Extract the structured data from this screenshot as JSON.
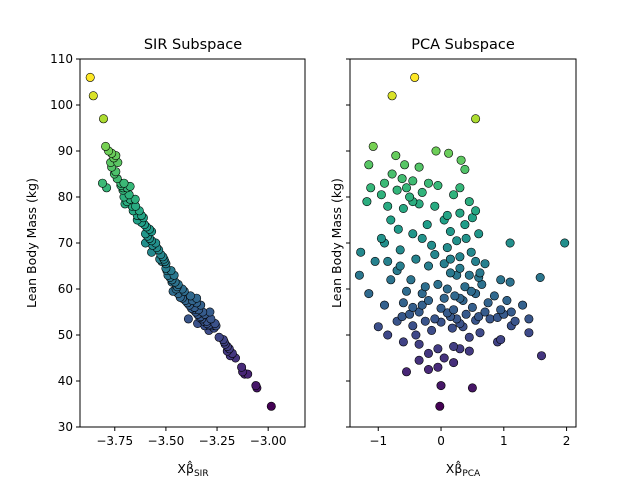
{
  "chart_data": [
    {
      "type": "scatter",
      "title": "SIR Subspace",
      "xlabel_main": "Xβ̂",
      "xlabel_sub": "SIR",
      "ylabel": "Lean Body Mass (kg)",
      "xlim": [
        -3.92,
        -2.82
      ],
      "ylim": [
        30,
        110
      ],
      "xticks": [
        -3.75,
        -3.5,
        -3.25,
        -3.0
      ],
      "xtick_labels": [
        "−3.75",
        "−3.50",
        "−3.25",
        "−3.00"
      ],
      "yticks": [
        30,
        40,
        50,
        60,
        70,
        80,
        90,
        100,
        110
      ],
      "ytick_labels": [
        "30",
        "40",
        "50",
        "60",
        "70",
        "80",
        "90",
        "100",
        "110"
      ],
      "colormap": "viridis",
      "grid": false,
      "points": [
        [
          -3.87,
          106
        ],
        [
          -3.855,
          102
        ],
        [
          -3.805,
          97
        ],
        [
          -3.795,
          91
        ],
        [
          -3.78,
          90
        ],
        [
          -3.765,
          89.5
        ],
        [
          -3.755,
          88.5
        ],
        [
          -3.745,
          89
        ],
        [
          -3.77,
          87.5
        ],
        [
          -3.765,
          86.5
        ],
        [
          -3.752,
          85
        ],
        [
          -3.745,
          85.5
        ],
        [
          -3.738,
          84
        ],
        [
          -3.72,
          83
        ],
        [
          -3.71,
          82
        ],
        [
          -3.705,
          83
        ],
        [
          -3.69,
          82
        ],
        [
          -3.675,
          82.3
        ],
        [
          -3.705,
          80
        ],
        [
          -3.69,
          79
        ],
        [
          -3.675,
          79.5
        ],
        [
          -3.665,
          78
        ],
        [
          -3.66,
          77
        ],
        [
          -3.648,
          78
        ],
        [
          -3.64,
          76
        ],
        [
          -3.64,
          75
        ],
        [
          -3.62,
          76
        ],
        [
          -3.61,
          75.5
        ],
        [
          -3.605,
          74
        ],
        [
          -3.595,
          73.5
        ],
        [
          -3.6,
          72
        ],
        [
          -3.59,
          71.5
        ],
        [
          -3.58,
          71
        ],
        [
          -3.57,
          70.5
        ],
        [
          -3.565,
          69.5
        ],
        [
          -3.57,
          68
        ],
        [
          -3.545,
          69
        ],
        [
          -3.535,
          68.5
        ],
        [
          -3.525,
          67.5
        ],
        [
          -3.53,
          66.5
        ],
        [
          -3.52,
          66
        ],
        [
          -3.51,
          66.5
        ],
        [
          -3.5,
          65.5
        ],
        [
          -3.495,
          64
        ],
        [
          -3.49,
          63
        ],
        [
          -3.48,
          62.5
        ],
        [
          -3.47,
          61.5
        ],
        [
          -3.455,
          61.5
        ],
        [
          -3.445,
          60.5
        ],
        [
          -3.465,
          59.5
        ],
        [
          -3.44,
          59
        ],
        [
          -3.43,
          58.2
        ],
        [
          -3.42,
          58
        ],
        [
          -3.405,
          57.5
        ],
        [
          -3.395,
          57
        ],
        [
          -3.385,
          56.5
        ],
        [
          -3.375,
          55.8
        ],
        [
          -3.365,
          55.5
        ],
        [
          -3.355,
          55
        ],
        [
          -3.345,
          54.5
        ],
        [
          -3.335,
          53.8
        ],
        [
          -3.325,
          53.5
        ],
        [
          -3.315,
          53
        ],
        [
          -3.3,
          52.5
        ],
        [
          -3.29,
          52.2
        ],
        [
          -3.275,
          52
        ],
        [
          -3.265,
          51.5
        ],
        [
          -3.35,
          58
        ],
        [
          -3.33,
          56.5
        ],
        [
          -3.39,
          53.5
        ],
        [
          -3.345,
          52.5
        ],
        [
          -3.31,
          54.5
        ],
        [
          -3.285,
          55
        ],
        [
          -3.255,
          52
        ],
        [
          -3.22,
          49
        ],
        [
          -3.21,
          48
        ],
        [
          -3.2,
          47.5
        ],
        [
          -3.19,
          47
        ],
        [
          -3.2,
          46.5
        ],
        [
          -3.185,
          45.5
        ],
        [
          -3.175,
          46
        ],
        [
          -3.16,
          45
        ],
        [
          -3.13,
          43
        ],
        [
          -3.125,
          42
        ],
        [
          -3.115,
          41.5
        ],
        [
          -3.1,
          41.5
        ],
        [
          -3.06,
          39
        ],
        [
          -3.055,
          38.5
        ],
        [
          -2.985,
          34.5
        ],
        [
          -3.81,
          83
        ],
        [
          -3.79,
          82
        ],
        [
          -3.71,
          81.5
        ],
        [
          -3.7,
          78.5
        ],
        [
          -3.63,
          77
        ],
        [
          -3.62,
          74.5
        ],
        [
          -3.58,
          73
        ],
        [
          -3.55,
          70
        ],
        [
          -3.515,
          67
        ],
        [
          -3.505,
          66
        ],
        [
          -3.475,
          64
        ],
        [
          -3.46,
          63
        ],
        [
          -3.44,
          61
        ],
        [
          -3.42,
          60
        ],
        [
          -3.41,
          59.5
        ],
        [
          -3.38,
          58.5
        ],
        [
          -3.37,
          57.5
        ],
        [
          -3.36,
          56
        ],
        [
          -3.34,
          55.5
        ],
        [
          -3.32,
          55
        ],
        [
          -3.3,
          53
        ],
        [
          -3.28,
          53.5
        ],
        [
          -3.26,
          52.5
        ],
        [
          -3.24,
          49.5
        ],
        [
          -3.215,
          48.5
        ],
        [
          -3.57,
          72.5
        ],
        [
          -3.6,
          70
        ],
        [
          -3.5,
          64.5
        ],
        [
          -3.47,
          62
        ],
        [
          -3.45,
          60
        ],
        [
          -3.35,
          57
        ],
        [
          -3.33,
          54
        ],
        [
          -3.31,
          52
        ],
        [
          -3.29,
          51
        ],
        [
          -3.68,
          80.5
        ],
        [
          -3.65,
          79.5
        ],
        [
          -3.72,
          82.5
        ],
        [
          -3.735,
          87.5
        ]
      ]
    },
    {
      "type": "scatter",
      "title": "PCA Subspace",
      "xlabel_main": "Xβ̂",
      "xlabel_sub": "PCA",
      "ylabel": "Lean Body Mass (kg)",
      "xlim": [
        -1.45,
        2.15
      ],
      "ylim": [
        30,
        110
      ],
      "xticks": [
        -1,
        0,
        1,
        2
      ],
      "xtick_labels": [
        "−1",
        "0",
        "1",
        "2"
      ],
      "yticks": [
        30,
        40,
        50,
        60,
        70,
        80,
        90,
        100,
        110
      ],
      "colormap": "viridis",
      "grid": false,
      "points": [
        [
          -0.42,
          106
        ],
        [
          -0.78,
          102
        ],
        [
          0.55,
          97
        ],
        [
          -1.08,
          91
        ],
        [
          -0.72,
          89
        ],
        [
          -0.08,
          90
        ],
        [
          0.32,
          88
        ],
        [
          0.12,
          89.5
        ],
        [
          -1.15,
          87
        ],
        [
          -0.58,
          87
        ],
        [
          -0.35,
          86.5
        ],
        [
          0.38,
          86
        ],
        [
          -0.78,
          85
        ],
        [
          -0.62,
          84
        ],
        [
          -0.45,
          83.5
        ],
        [
          -0.2,
          83
        ],
        [
          -0.05,
          82.5
        ],
        [
          -0.3,
          81
        ],
        [
          -1.12,
          82
        ],
        [
          -0.95,
          80.5
        ],
        [
          -0.7,
          81.5
        ],
        [
          -0.5,
          80
        ],
        [
          0.2,
          80.5
        ],
        [
          0.45,
          79
        ],
        [
          -1.18,
          79
        ],
        [
          -0.85,
          78
        ],
        [
          -0.6,
          77.5
        ],
        [
          -0.35,
          78.5
        ],
        [
          -0.1,
          78
        ],
        [
          0.55,
          77
        ],
        [
          0.3,
          76.5
        ],
        [
          0.05,
          75
        ],
        [
          -0.22,
          74
        ],
        [
          0.38,
          74
        ],
        [
          -0.68,
          73
        ],
        [
          0.15,
          72.5
        ],
        [
          -0.45,
          72
        ],
        [
          0.6,
          72
        ],
        [
          -0.95,
          71
        ],
        [
          -0.3,
          71
        ],
        [
          0.25,
          70.5
        ],
        [
          -1.28,
          68
        ],
        [
          -0.65,
          68.5
        ],
        [
          1.1,
          70
        ],
        [
          1.97,
          70
        ],
        [
          -0.15,
          69.5
        ],
        [
          0.1,
          69
        ],
        [
          0.3,
          67
        ],
        [
          0.48,
          68
        ],
        [
          -0.85,
          66
        ],
        [
          -0.4,
          66.5
        ],
        [
          0.55,
          66
        ],
        [
          0.7,
          65.5
        ],
        [
          -1.05,
          66
        ],
        [
          -0.2,
          65
        ],
        [
          0.05,
          65.5
        ],
        [
          0.3,
          64.5
        ],
        [
          -0.7,
          64
        ],
        [
          0.15,
          63.5
        ],
        [
          0.45,
          63
        ],
        [
          0.62,
          63.5
        ],
        [
          -1.3,
          63
        ],
        [
          -0.48,
          62
        ],
        [
          0.25,
          63
        ],
        [
          0.95,
          62
        ],
        [
          1.58,
          62.5
        ],
        [
          1.1,
          61.5
        ],
        [
          -0.05,
          61
        ],
        [
          0.38,
          60.5
        ],
        [
          0.65,
          61
        ],
        [
          -1.15,
          59
        ],
        [
          -0.55,
          59.5
        ],
        [
          0.1,
          60
        ],
        [
          0.48,
          59.5
        ],
        [
          -0.3,
          59
        ],
        [
          0.22,
          58.5
        ],
        [
          0.85,
          58.5
        ],
        [
          -0.6,
          57
        ],
        [
          -0.2,
          57.5
        ],
        [
          0.05,
          58
        ],
        [
          0.35,
          57.5
        ],
        [
          0.75,
          57
        ],
        [
          1.05,
          57.5
        ],
        [
          -0.9,
          56.5
        ],
        [
          -0.45,
          56
        ],
        [
          0.0,
          55.8
        ],
        [
          0.2,
          55.5
        ],
        [
          0.5,
          56
        ],
        [
          0.95,
          55.5
        ],
        [
          1.3,
          56.5
        ],
        [
          -0.35,
          55
        ],
        [
          0.1,
          54.8
        ],
        [
          0.4,
          54.5
        ],
        [
          0.6,
          54
        ],
        [
          1.0,
          54.5
        ],
        [
          1.12,
          55
        ],
        [
          -0.62,
          54
        ],
        [
          -0.1,
          53.5
        ],
        [
          0.25,
          53.5
        ],
        [
          0.55,
          53.2
        ],
        [
          0.78,
          53.5
        ],
        [
          1.18,
          53
        ],
        [
          1.4,
          53.5
        ],
        [
          -0.7,
          53
        ],
        [
          -0.25,
          53
        ],
        [
          0.0,
          52.8
        ],
        [
          0.3,
          52.5
        ],
        [
          -1.0,
          51.8
        ],
        [
          -0.45,
          52
        ],
        [
          0.18,
          51.5
        ],
        [
          1.12,
          52
        ],
        [
          -0.15,
          51
        ],
        [
          -0.85,
          50
        ],
        [
          -0.35,
          48
        ],
        [
          0.45,
          49.5
        ],
        [
          0.95,
          49
        ],
        [
          -0.6,
          48.5
        ],
        [
          0.2,
          47.5
        ],
        [
          0.9,
          48.5
        ],
        [
          0.45,
          46.5
        ],
        [
          1.6,
          45.5
        ],
        [
          -0.2,
          46
        ],
        [
          0.05,
          45
        ],
        [
          -0.55,
          42
        ],
        [
          -0.2,
          42.5
        ],
        [
          -0.05,
          43
        ],
        [
          0.0,
          39
        ],
        [
          0.5,
          38.5
        ],
        [
          -0.02,
          34.5
        ],
        [
          -0.9,
          83
        ],
        [
          -0.55,
          82
        ],
        [
          0.1,
          76
        ],
        [
          -0.8,
          75
        ],
        [
          0.4,
          71
        ],
        [
          -0.1,
          67.5
        ],
        [
          0.6,
          62.5
        ],
        [
          -0.8,
          62
        ],
        [
          0.3,
          58
        ],
        [
          -0.3,
          56.5
        ],
        [
          0.7,
          55
        ],
        [
          0.15,
          54
        ],
        [
          -0.5,
          54.5
        ],
        [
          0.9,
          53.8
        ],
        [
          0.35,
          51.8
        ],
        [
          -0.4,
          50
        ],
        [
          0.62,
          50.5
        ],
        [
          -0.05,
          47
        ],
        [
          0.3,
          47
        ],
        [
          -0.35,
          44.5
        ],
        [
          0.2,
          44
        ],
        [
          1.4,
          50.5
        ],
        [
          -0.25,
          60.5
        ],
        [
          0.55,
          59
        ],
        [
          -0.65,
          65
        ],
        [
          0.15,
          66.5
        ],
        [
          -0.9,
          70
        ],
        [
          0.5,
          75.5
        ],
        [
          -0.45,
          79
        ],
        [
          0.3,
          82
        ]
      ]
    }
  ]
}
